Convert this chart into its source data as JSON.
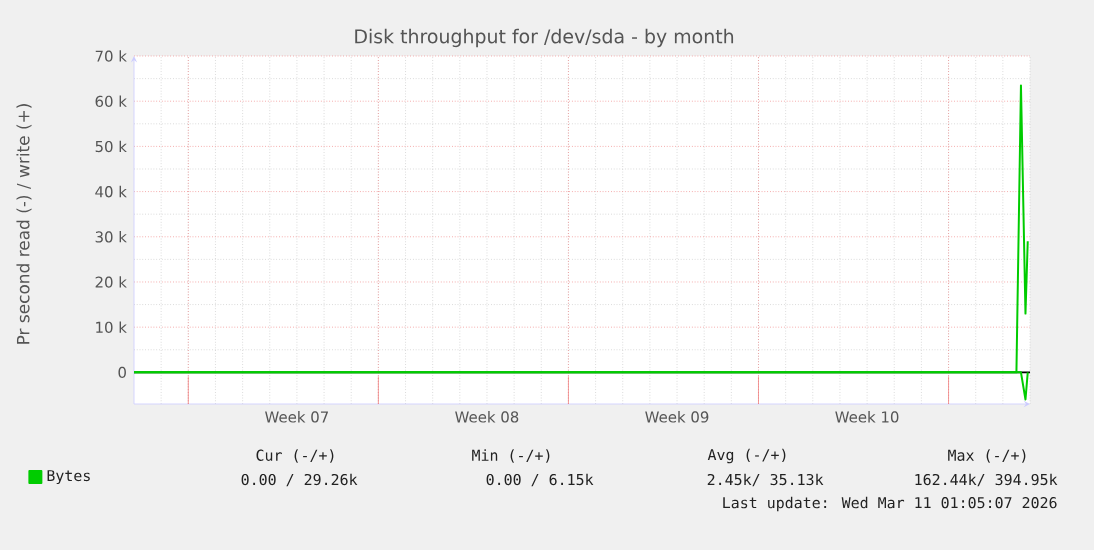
{
  "chart_data": {
    "type": "line",
    "title": "Disk throughput for /dev/sda - by month",
    "ylabel": "Pr second read (-) / write (+)",
    "xlim": [
      "2026-02-07",
      "2026-03-12"
    ],
    "ylim": [
      -7000,
      70000
    ],
    "xticks": [
      {
        "value": "2026-02-09",
        "label": null
      },
      {
        "value": "2026-02-13",
        "label": "Week 07"
      },
      {
        "value": "2026-02-16",
        "label": null
      },
      {
        "value": "2026-02-20",
        "label": "Week 08"
      },
      {
        "value": "2026-02-23",
        "label": null
      },
      {
        "value": "2026-02-27",
        "label": "Week 09"
      },
      {
        "value": "2026-03-02",
        "label": null
      },
      {
        "value": "2026-03-06",
        "label": "Week 10"
      },
      {
        "value": "2026-03-09",
        "label": null
      }
    ],
    "yticks": [
      0,
      {
        "value": 10000,
        "label": "10 k"
      },
      {
        "value": 20000,
        "label": "20 k"
      },
      {
        "value": 30000,
        "label": "30 k"
      },
      {
        "value": 40000,
        "label": "40 k"
      },
      {
        "value": 50000,
        "label": "50 k"
      },
      {
        "value": 60000,
        "label": "60 k"
      },
      {
        "value": 70000,
        "label": "70 k"
      }
    ],
    "grid": true,
    "legend": "bottom left",
    "series": [
      {
        "name": "Bytes",
        "color": "#00cc00",
        "x": [
          "2026-02-07",
          "2026-03-11T12:00",
          "2026-03-11T16:00",
          "2026-03-11T20:00",
          "2026-03-11T22:00"
        ],
        "values": [
          0,
          0,
          63500,
          13000,
          29000
        ]
      },
      {
        "color": "#00cc00",
        "x": [
          "2026-02-07",
          "2026-03-11T16:00",
          "2026-03-11T20:00",
          "2026-03-11T22:00"
        ],
        "values": [
          0,
          0,
          -6000,
          0
        ]
      }
    ],
    "ref_lines": [
      {
        "axis": "y",
        "value": 0,
        "color": "#000000"
      }
    ],
    "annotations": [
      "Cur (-/+)",
      "Min (-/+)",
      "Avg (-/+)",
      "Max (-/+)",
      "0.00 /  29.26k",
      "0.00 /    6.15k",
      "2.45k/  35.13k",
      "162.44k/ 394.95k",
      "Last update: Wed Mar 11 01:05:07 2026"
    ]
  }
}
